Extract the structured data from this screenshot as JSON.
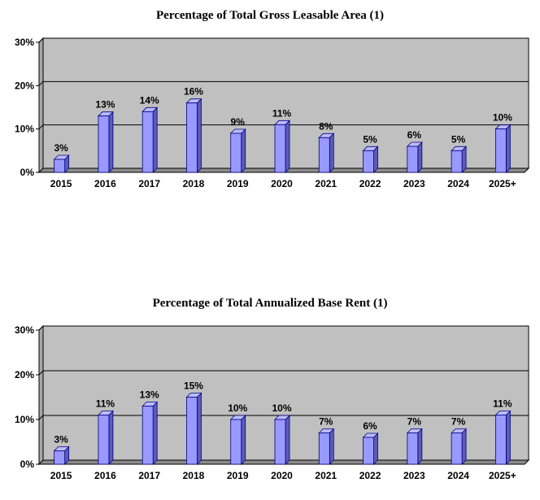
{
  "chart_data": [
    {
      "type": "bar",
      "title": "Percentage of Total Gross Leasable Area (1)",
      "categories": [
        "2015",
        "2016",
        "2017",
        "2018",
        "2019",
        "2020",
        "2021",
        "2022",
        "2023",
        "2024",
        "2025+"
      ],
      "values": [
        3,
        13,
        14,
        16,
        9,
        11,
        8,
        5,
        6,
        5,
        10
      ],
      "value_labels": [
        "3%",
        "13%",
        "14%",
        "16%",
        "9%",
        "11%",
        "8%",
        "5%",
        "6%",
        "5%",
        "10%"
      ],
      "y_ticks": [
        0,
        10,
        20,
        30
      ],
      "y_tick_labels": [
        "0%",
        "10%",
        "20%",
        "30%"
      ],
      "ylim": [
        0,
        30
      ],
      "grid": true,
      "legend": "none",
      "bar_color": "#9999ff",
      "bar_edge_color": "#000080",
      "plot_background": "#c0c0c0"
    },
    {
      "type": "bar",
      "title": "Percentage of Total Annualized Base Rent (1)",
      "categories": [
        "2015",
        "2016",
        "2017",
        "2018",
        "2019",
        "2020",
        "2021",
        "2022",
        "2023",
        "2024",
        "2025+"
      ],
      "values": [
        3,
        11,
        13,
        15,
        10,
        10,
        7,
        6,
        7,
        7,
        11
      ],
      "value_labels": [
        "3%",
        "11%",
        "13%",
        "15%",
        "10%",
        "10%",
        "7%",
        "6%",
        "7%",
        "7%",
        "11%"
      ],
      "y_ticks": [
        0,
        10,
        20,
        30
      ],
      "y_tick_labels": [
        "0%",
        "10%",
        "20%",
        "30%"
      ],
      "ylim": [
        0,
        30
      ],
      "grid": true,
      "legend": "none",
      "bar_color": "#9999ff",
      "bar_edge_color": "#000080",
      "plot_background": "#c0c0c0"
    }
  ]
}
